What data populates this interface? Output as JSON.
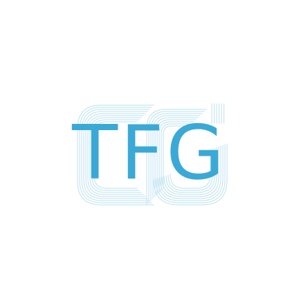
{
  "logo": {
    "text": "TFG",
    "colors": {
      "text": "#3aa9d6",
      "outline": "#c7e6f2",
      "background": "#ffffff"
    }
  }
}
